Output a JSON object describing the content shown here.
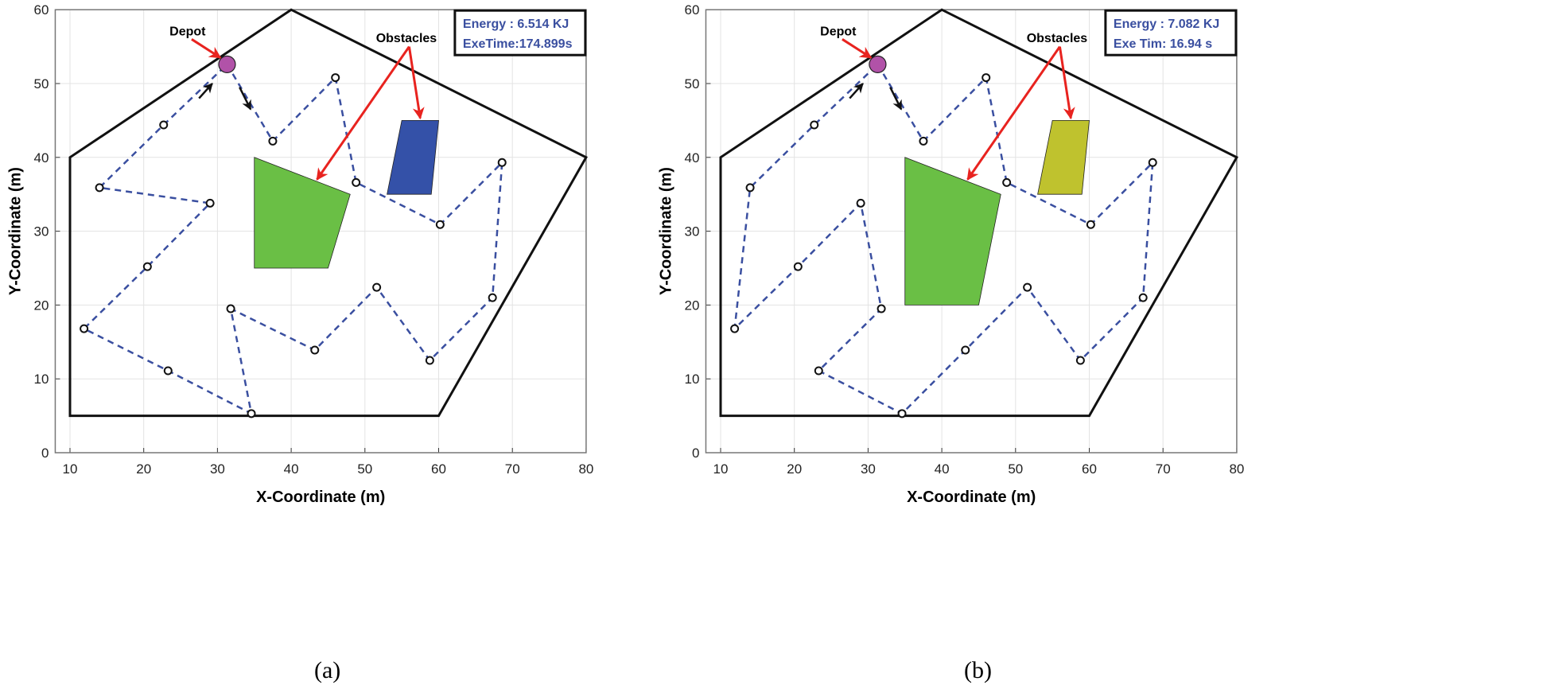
{
  "chart_data": [
    {
      "type": "line",
      "caption": "(a)",
      "xlabel": "X-Coordinate (m)",
      "ylabel": "Y-Coordinate (m)",
      "xlim": [
        8,
        80
      ],
      "ylim": [
        0,
        60
      ],
      "xticks": [
        10,
        20,
        30,
        40,
        50,
        60,
        70,
        80
      ],
      "yticks": [
        0,
        10,
        20,
        30,
        40,
        50,
        60
      ],
      "grid": true,
      "info_box": {
        "line1": "Energy : 6.514 KJ",
        "line2": "ExeTime:174.899s",
        "placement": "top-right"
      },
      "annotations": {
        "depot": "Depot",
        "obstacles": "Obstacles"
      },
      "boundary": [
        [
          10,
          5
        ],
        [
          10,
          40
        ],
        [
          40,
          60
        ],
        [
          80,
          40
        ],
        [
          60,
          5
        ]
      ],
      "depot": [
        31.3,
        52.6
      ],
      "obstacles": [
        {
          "color": "#6abf45",
          "points": [
            [
              35,
              40
            ],
            [
              48,
              35
            ],
            [
              45,
              25
            ],
            [
              35,
              25
            ]
          ]
        },
        {
          "color": "#3451a8",
          "points": [
            [
              55,
              45
            ],
            [
              60,
              45
            ],
            [
              59,
              35
            ],
            [
              53,
              35
            ]
          ]
        }
      ],
      "route": [
        [
          31.3,
          52.6
        ],
        [
          37.5,
          42.2
        ],
        [
          46,
          50.8
        ],
        [
          48.8,
          36.6
        ],
        [
          60.2,
          30.9
        ],
        [
          68.6,
          39.3
        ],
        [
          67.3,
          21
        ],
        [
          58.8,
          12.5
        ],
        [
          51.6,
          22.4
        ],
        [
          43.2,
          13.9
        ],
        [
          31.8,
          19.5
        ],
        [
          34.6,
          5.3
        ],
        [
          23.3,
          11.1
        ],
        [
          11.9,
          16.8
        ],
        [
          20.5,
          25.2
        ],
        [
          29,
          33.8
        ],
        [
          14,
          35.9
        ],
        [
          22.7,
          44.4
        ],
        [
          31.3,
          52.6
        ]
      ],
      "colors": {
        "route": "#3a4fa0",
        "depot": "#b152a8",
        "arrow": "#e8231f",
        "text_box": "#3a4fa0"
      }
    },
    {
      "type": "line",
      "caption": "(b)",
      "xlabel": "X-Coordinate (m)",
      "ylabel": "Y-Coordinate (m)",
      "xlim": [
        8,
        80
      ],
      "ylim": [
        0,
        60
      ],
      "xticks": [
        10,
        20,
        30,
        40,
        50,
        60,
        70,
        80
      ],
      "yticks": [
        0,
        10,
        20,
        30,
        40,
        50,
        60
      ],
      "grid": true,
      "info_box": {
        "line1": "Energy : 7.082 KJ",
        "line2": "Exe Tim: 16.94 s",
        "placement": "top-right"
      },
      "annotations": {
        "depot": "Depot",
        "obstacles": "Obstacles"
      },
      "boundary": [
        [
          10,
          5
        ],
        [
          10,
          40
        ],
        [
          40,
          60
        ],
        [
          80,
          40
        ],
        [
          60,
          5
        ]
      ],
      "depot": [
        31.3,
        52.6
      ],
      "obstacles": [
        {
          "color": "#6abf45",
          "points": [
            [
              35,
              40
            ],
            [
              48,
              35
            ],
            [
              45,
              20
            ],
            [
              35,
              20
            ]
          ]
        },
        {
          "color": "#bfc22e",
          "points": [
            [
              55,
              45
            ],
            [
              60,
              45
            ],
            [
              59,
              35
            ],
            [
              53,
              35
            ]
          ]
        }
      ],
      "route": [
        [
          31.3,
          52.6
        ],
        [
          37.5,
          42.2
        ],
        [
          46,
          50.8
        ],
        [
          48.8,
          36.6
        ],
        [
          60.2,
          30.9
        ],
        [
          68.6,
          39.3
        ],
        [
          67.3,
          21
        ],
        [
          58.8,
          12.5
        ],
        [
          51.6,
          22.4
        ],
        [
          43.2,
          13.9
        ],
        [
          34.6,
          5.3
        ],
        [
          23.3,
          11.1
        ],
        [
          31.8,
          19.5
        ],
        [
          29,
          33.8
        ],
        [
          20.5,
          25.2
        ],
        [
          11.9,
          16.8
        ],
        [
          14,
          35.9
        ],
        [
          22.7,
          44.4
        ],
        [
          31.3,
          52.6
        ]
      ],
      "colors": {
        "route": "#3a4fa0",
        "depot": "#b152a8",
        "arrow": "#e8231f",
        "text_box": "#3a4fa0"
      }
    }
  ]
}
